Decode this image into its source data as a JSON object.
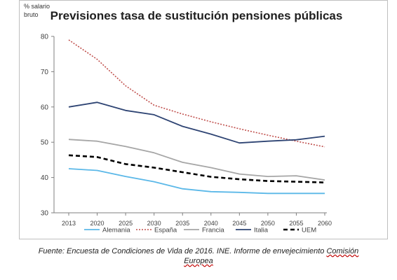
{
  "chart_data": {
    "type": "line",
    "title": "Previsiones tasa de sustitución pensiones públicas",
    "unit_label_line1": "% salario",
    "unit_label_line2": "bruto",
    "xlabel": "",
    "ylabel": "",
    "x": [
      "2013",
      "2020",
      "2025",
      "2030",
      "2035",
      "2040",
      "2045",
      "2050",
      "2055",
      "2060"
    ],
    "ylim": [
      30,
      80
    ],
    "yticks": [
      30,
      40,
      50,
      60,
      70,
      80
    ],
    "grid": false,
    "legend_position": "bottom",
    "series": [
      {
        "name": "Alemania",
        "color": "#5bb8e8",
        "style": "solid",
        "values": [
          42.5,
          42.0,
          40.3,
          38.8,
          36.8,
          36.0,
          35.8,
          35.5,
          35.5,
          35.5
        ]
      },
      {
        "name": "España",
        "color": "#c0504d",
        "style": "dotted",
        "values": [
          79.0,
          73.5,
          66.0,
          60.5,
          58.0,
          55.8,
          53.8,
          52.0,
          50.3,
          48.7
        ]
      },
      {
        "name": "Francia",
        "color": "#a6a6a6",
        "style": "solid",
        "values": [
          50.8,
          50.3,
          48.8,
          47.0,
          44.3,
          42.8,
          41.0,
          40.3,
          40.5,
          39.3
        ]
      },
      {
        "name": "Italia",
        "color": "#2e4473",
        "style": "solid",
        "values": [
          60.0,
          61.3,
          59.0,
          57.8,
          54.5,
          52.3,
          49.8,
          50.3,
          50.7,
          51.7
        ]
      },
      {
        "name": "UEM",
        "color": "#000000",
        "style": "dashed",
        "values": [
          46.3,
          45.8,
          43.8,
          42.8,
          41.5,
          40.2,
          39.5,
          39.0,
          38.8,
          38.6
        ]
      }
    ]
  },
  "caption": {
    "prefix": "Fuente: Encuesta de Condiciones de Vida de 2016. INE. Informe de envejecimiento ",
    "underlined_1": "Comisión",
    "underlined_2": "Europea"
  }
}
